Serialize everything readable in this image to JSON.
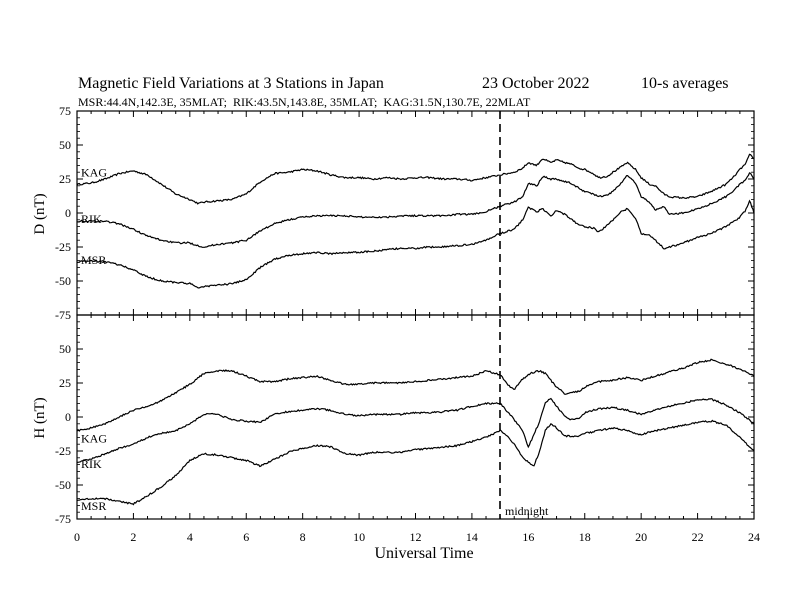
{
  "chart_data": [
    {
      "type": "line",
      "title": "Magnetic Field Variations at 3 Stations in Japan",
      "date": "23 October 2022",
      "averaging": "10-s averages",
      "subtitle": "MSR:44.4N,142.3E, 35MLAT;  RIK:43.5N,143.8E, 35MLAT;  KAG:31.5N,130.7E, 22MLAT",
      "ylabel": "D (nT)",
      "ylim": [
        -75,
        75
      ],
      "yticks": [
        -75,
        -50,
        -25,
        0,
        25,
        50,
        75
      ],
      "xlim": [
        0,
        24
      ],
      "series": [
        {
          "name": "KAG",
          "color": "#000000",
          "x": [
            0,
            0.5,
            1,
            1.5,
            2,
            2.5,
            3,
            3.5,
            4,
            4.3,
            4.5,
            5,
            5.5,
            6,
            6.5,
            7,
            7.5,
            8,
            8.5,
            9,
            9.5,
            10,
            10.5,
            11,
            11.5,
            12,
            12.5,
            13,
            13.5,
            14,
            14.5,
            15,
            15.5,
            15.8,
            16,
            16.3,
            16.5,
            16.8,
            17,
            17.3,
            17.5,
            17.8,
            18,
            18.3,
            18.5,
            18.8,
            19,
            19.3,
            19.5,
            19.8,
            20,
            20.3,
            20.5,
            20.8,
            21,
            21.5,
            22,
            22.5,
            23,
            23.3,
            23.5,
            23.7,
            23.85,
            24
          ],
          "values": [
            21,
            22,
            25,
            29,
            31,
            28,
            21,
            14,
            10,
            7,
            8,
            9,
            10,
            14,
            23,
            29,
            30,
            32,
            31,
            28,
            26,
            26,
            25,
            26,
            25,
            26,
            26,
            25,
            25,
            24,
            26,
            28,
            30,
            33,
            37,
            35,
            40,
            37,
            39,
            37,
            36,
            33,
            32,
            29,
            26,
            27,
            30,
            34,
            37,
            32,
            26,
            21,
            20,
            14,
            12,
            11,
            12,
            16,
            21,
            27,
            32,
            36,
            43,
            40
          ]
        },
        {
          "name": "RIK",
          "color": "#000000",
          "x": [
            0,
            0.5,
            1,
            1.5,
            2,
            2.5,
            3,
            3.5,
            4,
            4.3,
            4.5,
            5,
            5.5,
            6,
            6.5,
            7,
            7.5,
            8,
            8.5,
            9,
            9.5,
            10,
            10.5,
            11,
            11.5,
            12,
            12.5,
            13,
            13.5,
            14,
            14.5,
            15,
            15.5,
            15.8,
            16,
            16.3,
            16.5,
            16.8,
            17,
            17.3,
            17.5,
            17.8,
            18,
            18.3,
            18.5,
            18.8,
            19,
            19.3,
            19.5,
            19.8,
            20,
            20.3,
            20.5,
            20.8,
            21,
            21.5,
            22,
            22.5,
            23,
            23.3,
            23.5,
            23.7,
            23.85,
            24
          ],
          "values": [
            -6,
            -6,
            -6,
            -8,
            -12,
            -17,
            -20,
            -22,
            -22,
            -24,
            -25,
            -23,
            -22,
            -20,
            -13,
            -8,
            -5,
            -3,
            -2,
            -2,
            -2,
            -3,
            -3,
            -3,
            -2,
            -2,
            -2,
            -2,
            -1,
            -1,
            1,
            5,
            8,
            12,
            22,
            20,
            27,
            25,
            25,
            23,
            22,
            18,
            16,
            14,
            12,
            13,
            16,
            22,
            28,
            22,
            12,
            8,
            2,
            5,
            -1,
            0,
            3,
            7,
            12,
            17,
            21,
            24,
            30,
            24
          ]
        },
        {
          "name": "MSR",
          "color": "#000000",
          "x": [
            0,
            0.5,
            1,
            1.5,
            2,
            2.5,
            3,
            3.5,
            4,
            4.3,
            4.5,
            5,
            5.5,
            6,
            6.5,
            7,
            7.5,
            8,
            8.5,
            9,
            9.5,
            10,
            10.5,
            11,
            11.5,
            12,
            12.5,
            13,
            13.5,
            14,
            14.5,
            15,
            15.5,
            15.8,
            16,
            16.3,
            16.5,
            16.8,
            17,
            17.3,
            17.5,
            17.8,
            18,
            18.3,
            18.5,
            18.8,
            19,
            19.3,
            19.5,
            19.8,
            20,
            20.3,
            20.5,
            20.8,
            21,
            21.5,
            22,
            22.5,
            23,
            23.3,
            23.5,
            23.7,
            23.85,
            24
          ],
          "values": [
            -36,
            -35,
            -36,
            -38,
            -42,
            -47,
            -50,
            -51,
            -52,
            -55,
            -54,
            -53,
            -52,
            -49,
            -40,
            -34,
            -31,
            -30,
            -29,
            -30,
            -29,
            -29,
            -28,
            -27,
            -26,
            -26,
            -25,
            -25,
            -24,
            -23,
            -20,
            -15,
            -12,
            -5,
            4,
            1,
            3,
            -2,
            2,
            -1,
            -4,
            -9,
            -10,
            -11,
            -14,
            -9,
            -5,
            1,
            3,
            -4,
            -15,
            -16,
            -20,
            -26,
            -25,
            -22,
            -18,
            -15,
            -10,
            -6,
            -3,
            2,
            9,
            0
          ]
        }
      ]
    },
    {
      "type": "line",
      "ylabel": "H (nT)",
      "xlabel": "Universal Time",
      "ylim": [
        -75,
        75
      ],
      "yticks": [
        -75,
        -50,
        -25,
        0,
        25,
        50,
        75
      ],
      "xlim": [
        0,
        24
      ],
      "xticks": [
        0,
        2,
        4,
        6,
        8,
        10,
        12,
        14,
        16,
        18,
        20,
        22,
        24
      ],
      "annotation": {
        "x": 15,
        "label": "midnight"
      },
      "series": [
        {
          "name": "KAG",
          "color": "#000000",
          "x": [
            0,
            0.5,
            1,
            1.5,
            2,
            2.5,
            3,
            3.5,
            4,
            4.5,
            5,
            5.5,
            6,
            6.5,
            7,
            7.5,
            8,
            8.5,
            9,
            9.5,
            10,
            10.5,
            11,
            11.5,
            12,
            12.5,
            13,
            13.5,
            14,
            14.5,
            15,
            15.3,
            15.5,
            15.8,
            16,
            16.2,
            16.4,
            16.6,
            16.8,
            17,
            17.3,
            17.5,
            17.8,
            18,
            18.3,
            18.5,
            19,
            19.5,
            20,
            20.5,
            21,
            21.5,
            22,
            22.5,
            23,
            23.5,
            24
          ],
          "values": [
            -10,
            -8,
            -5,
            0,
            5,
            8,
            12,
            18,
            24,
            32,
            34,
            34,
            30,
            26,
            26,
            28,
            29,
            30,
            27,
            24,
            24,
            25,
            25,
            25,
            26,
            27,
            28,
            29,
            30,
            34,
            31,
            23,
            20,
            28,
            31,
            33,
            34,
            32,
            27,
            22,
            17,
            18,
            19,
            22,
            25,
            26,
            27,
            29,
            27,
            30,
            33,
            36,
            40,
            42,
            39,
            35,
            30
          ]
        },
        {
          "name": "RIK",
          "color": "#000000",
          "x": [
            0,
            0.5,
            1,
            1.5,
            2,
            2.5,
            3,
            3.5,
            4,
            4.5,
            5,
            5.5,
            6,
            6.5,
            7,
            7.5,
            8,
            8.5,
            9,
            9.5,
            10,
            10.5,
            11,
            11.5,
            12,
            12.5,
            13,
            13.5,
            14,
            14.5,
            15,
            15.3,
            15.5,
            15.8,
            16,
            16.2,
            16.4,
            16.6,
            16.8,
            17,
            17.3,
            17.5,
            17.8,
            18,
            18.3,
            18.5,
            19,
            19.5,
            20,
            20.5,
            21,
            21.5,
            22,
            22.5,
            23,
            23.5,
            24
          ],
          "values": [
            -33,
            -31,
            -27,
            -23,
            -20,
            -15,
            -12,
            -10,
            -5,
            2,
            2,
            -2,
            -3,
            -4,
            2,
            4,
            5,
            6,
            5,
            2,
            1,
            2,
            2,
            2,
            3,
            3,
            4,
            5,
            8,
            10,
            10,
            3,
            -2,
            -10,
            -22,
            -13,
            -3,
            10,
            14,
            8,
            0,
            -2,
            -1,
            3,
            5,
            6,
            7,
            5,
            2,
            5,
            8,
            10,
            13,
            13,
            9,
            3,
            -5
          ]
        },
        {
          "name": "MSR",
          "color": "#000000",
          "x": [
            0,
            0.5,
            1,
            1.5,
            2,
            2.5,
            3,
            3.5,
            4,
            4.5,
            5,
            5.5,
            6,
            6.5,
            7,
            7.5,
            8,
            8.5,
            9,
            9.5,
            10,
            10.5,
            11,
            11.5,
            12,
            12.5,
            13,
            13.5,
            14,
            14.5,
            15,
            15.3,
            15.5,
            15.8,
            16,
            16.2,
            16.4,
            16.6,
            16.8,
            17,
            17.3,
            17.5,
            17.8,
            18,
            18.3,
            18.5,
            19,
            19.5,
            20,
            20.5,
            21,
            21.5,
            22,
            22.5,
            23,
            23.5,
            24
          ],
          "values": [
            -61,
            -60,
            -60,
            -62,
            -64,
            -58,
            -51,
            -43,
            -32,
            -27,
            -28,
            -30,
            -32,
            -36,
            -31,
            -26,
            -23,
            -21,
            -22,
            -27,
            -28,
            -26,
            -26,
            -26,
            -24,
            -23,
            -22,
            -21,
            -18,
            -15,
            -10,
            -15,
            -20,
            -30,
            -33,
            -36,
            -25,
            -10,
            -5,
            -8,
            -14,
            -14,
            -14,
            -12,
            -11,
            -10,
            -8,
            -10,
            -13,
            -10,
            -8,
            -6,
            -4,
            -3,
            -6,
            -15,
            -25
          ]
        }
      ]
    }
  ]
}
